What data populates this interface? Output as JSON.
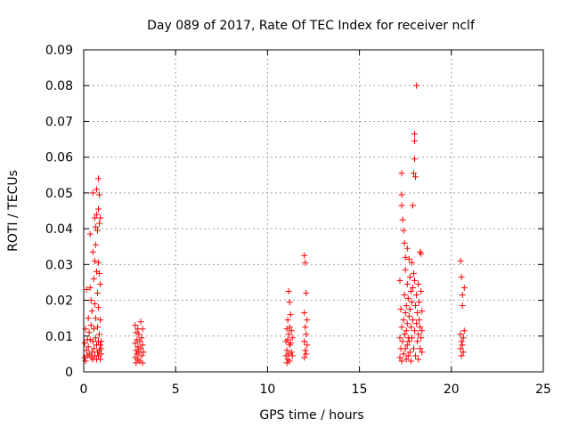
{
  "chart_data": {
    "type": "scatter",
    "title": "Day 089 of 2017, Rate Of TEC Index for receiver nclf",
    "xlabel": "GPS time / hours",
    "ylabel": "ROTI / TECUs",
    "xlim": [
      0,
      25
    ],
    "ylim": [
      0,
      0.09
    ],
    "xticks": [
      0,
      5,
      10,
      15,
      20,
      25
    ],
    "xtick_labels": [
      "0",
      "5",
      "10",
      "15",
      "20",
      "25"
    ],
    "yticks": [
      0,
      0.01,
      0.02,
      0.03,
      0.04,
      0.05,
      0.06,
      0.07,
      0.08,
      0.09
    ],
    "ytick_labels": [
      "0",
      "0.01",
      "0.02",
      "0.03",
      "0.04",
      "0.05",
      "0.06",
      "0.07",
      "0.08",
      "0.09"
    ],
    "grid": true,
    "marker": "+",
    "color": "#ff0000",
    "series": [
      {
        "name": "ROTI",
        "points": [
          [
            0.05,
            0.004
          ],
          [
            0.05,
            0.008
          ],
          [
            0.1,
            0.012
          ],
          [
            0.1,
            0.003
          ],
          [
            0.15,
            0.023
          ],
          [
            0.15,
            0.006
          ],
          [
            0.2,
            0.009
          ],
          [
            0.2,
            0.0045
          ],
          [
            0.25,
            0.015
          ],
          [
            0.25,
            0.007
          ],
          [
            0.3,
            0.005
          ],
          [
            0.3,
            0.011
          ],
          [
            0.35,
            0.0385
          ],
          [
            0.35,
            0.0235
          ],
          [
            0.35,
            0.009
          ],
          [
            0.4,
            0.013
          ],
          [
            0.4,
            0.004
          ],
          [
            0.4,
            0.02
          ],
          [
            0.45,
            0.017
          ],
          [
            0.45,
            0.0055
          ],
          [
            0.5,
            0.0335
          ],
          [
            0.5,
            0.0085
          ],
          [
            0.5,
            0.0035
          ],
          [
            0.5,
            0.05
          ],
          [
            0.55,
            0.026
          ],
          [
            0.55,
            0.012
          ],
          [
            0.55,
            0.0065
          ],
          [
            0.6,
            0.043
          ],
          [
            0.6,
            0.031
          ],
          [
            0.6,
            0.019
          ],
          [
            0.6,
            0.0045
          ],
          [
            0.65,
            0.0405
          ],
          [
            0.65,
            0.0355
          ],
          [
            0.65,
            0.0095
          ],
          [
            0.65,
            0.015
          ],
          [
            0.7,
            0.044
          ],
          [
            0.7,
            0.028
          ],
          [
            0.7,
            0.051
          ],
          [
            0.7,
            0.0075
          ],
          [
            0.7,
            0.0035
          ],
          [
            0.75,
            0.0395
          ],
          [
            0.75,
            0.022
          ],
          [
            0.75,
            0.0125
          ],
          [
            0.75,
            0.0055
          ],
          [
            0.8,
            0.054
          ],
          [
            0.8,
            0.0455
          ],
          [
            0.8,
            0.0305
          ],
          [
            0.8,
            0.018
          ],
          [
            0.8,
            0.0085
          ],
          [
            0.8,
            0.0045
          ],
          [
            0.85,
            0.0495
          ],
          [
            0.85,
            0.0415
          ],
          [
            0.85,
            0.0275
          ],
          [
            0.85,
            0.0105
          ],
          [
            0.85,
            0.006
          ],
          [
            0.9,
            0.043
          ],
          [
            0.9,
            0.0245
          ],
          [
            0.9,
            0.0145
          ],
          [
            0.9,
            0.0075
          ],
          [
            0.9,
            0.0035
          ],
          [
            0.95,
            0.0085
          ],
          [
            0.95,
            0.005
          ],
          [
            0.95,
            0.0065
          ],
          [
            2.8,
            0.013
          ],
          [
            2.8,
            0.008
          ],
          [
            2.8,
            0.004
          ],
          [
            2.85,
            0.011
          ],
          [
            2.85,
            0.006
          ],
          [
            2.85,
            0.0025
          ],
          [
            2.9,
            0.009
          ],
          [
            2.9,
            0.005
          ],
          [
            2.95,
            0.012
          ],
          [
            2.95,
            0.007
          ],
          [
            2.95,
            0.0035
          ],
          [
            3.0,
            0.0105
          ],
          [
            3.0,
            0.0055
          ],
          [
            3.05,
            0.0085
          ],
          [
            3.05,
            0.003
          ],
          [
            3.1,
            0.014
          ],
          [
            3.1,
            0.0065
          ],
          [
            3.15,
            0.0095
          ],
          [
            3.15,
            0.0045
          ],
          [
            3.2,
            0.012
          ],
          [
            3.2,
            0.0075
          ],
          [
            3.2,
            0.0025
          ],
          [
            3.25,
            0.0055
          ],
          [
            11.0,
            0.0085
          ],
          [
            11.0,
            0.0045
          ],
          [
            11.05,
            0.012
          ],
          [
            11.05,
            0.006
          ],
          [
            11.05,
            0.0025
          ],
          [
            11.1,
            0.0145
          ],
          [
            11.1,
            0.009
          ],
          [
            11.1,
            0.0035
          ],
          [
            11.15,
            0.0225
          ],
          [
            11.15,
            0.0105
          ],
          [
            11.15,
            0.005
          ],
          [
            11.2,
            0.0195
          ],
          [
            11.2,
            0.0125
          ],
          [
            11.2,
            0.0075
          ],
          [
            11.2,
            0.003
          ],
          [
            11.25,
            0.016
          ],
          [
            11.25,
            0.008
          ],
          [
            11.3,
            0.0115
          ],
          [
            11.3,
            0.0055
          ],
          [
            11.35,
            0.0095
          ],
          [
            11.35,
            0.0045
          ],
          [
            12.0,
            0.0325
          ],
          [
            12.0,
            0.0165
          ],
          [
            12.0,
            0.0085
          ],
          [
            12.0,
            0.004
          ],
          [
            12.05,
            0.0305
          ],
          [
            12.05,
            0.0125
          ],
          [
            12.05,
            0.006
          ],
          [
            12.1,
            0.022
          ],
          [
            12.1,
            0.0105
          ],
          [
            12.1,
            0.005
          ],
          [
            12.15,
            0.0145
          ],
          [
            12.15,
            0.0075
          ],
          [
            17.2,
            0.0255
          ],
          [
            17.2,
            0.0095
          ],
          [
            17.2,
            0.004
          ],
          [
            17.25,
            0.0175
          ],
          [
            17.25,
            0.0065
          ],
          [
            17.3,
            0.0555
          ],
          [
            17.3,
            0.0495
          ],
          [
            17.3,
            0.0465
          ],
          [
            17.3,
            0.0125
          ],
          [
            17.3,
            0.003
          ],
          [
            17.35,
            0.0425
          ],
          [
            17.35,
            0.0085
          ],
          [
            17.4,
            0.0395
          ],
          [
            17.4,
            0.0145
          ],
          [
            17.4,
            0.005
          ],
          [
            17.45,
            0.036
          ],
          [
            17.45,
            0.0215
          ],
          [
            17.45,
            0.0105
          ],
          [
            17.5,
            0.032
          ],
          [
            17.5,
            0.0285
          ],
          [
            17.5,
            0.0165
          ],
          [
            17.5,
            0.0065
          ],
          [
            17.55,
            0.0185
          ],
          [
            17.55,
            0.0115
          ],
          [
            17.55,
            0.0035
          ],
          [
            17.6,
            0.0345
          ],
          [
            17.6,
            0.0245
          ],
          [
            17.6,
            0.0135
          ],
          [
            17.6,
            0.0075
          ],
          [
            17.65,
            0.0205
          ],
          [
            17.65,
            0.0095
          ],
          [
            17.65,
            0.0045
          ],
          [
            17.7,
            0.0315
          ],
          [
            17.7,
            0.0155
          ],
          [
            17.7,
            0.0085
          ],
          [
            17.75,
            0.0265
          ],
          [
            17.75,
            0.0175
          ],
          [
            17.75,
            0.0055
          ],
          [
            17.8,
            0.0225
          ],
          [
            17.8,
            0.0125
          ],
          [
            17.8,
            0.003
          ],
          [
            17.85,
            0.0305
          ],
          [
            17.85,
            0.0195
          ],
          [
            17.85,
            0.0095
          ],
          [
            17.9,
            0.0465
          ],
          [
            17.9,
            0.0235
          ],
          [
            17.9,
            0.0145
          ],
          [
            17.95,
            0.0555
          ],
          [
            17.95,
            0.0275
          ],
          [
            17.95,
            0.0065
          ],
          [
            18.0,
            0.0665
          ],
          [
            18.0,
            0.0645
          ],
          [
            18.0,
            0.0595
          ],
          [
            18.0,
            0.0255
          ],
          [
            18.0,
            0.0115
          ],
          [
            18.05,
            0.0545
          ],
          [
            18.05,
            0.0185
          ],
          [
            18.05,
            0.0045
          ],
          [
            18.1,
            0.08
          ],
          [
            18.1,
            0.0215
          ],
          [
            18.1,
            0.0135
          ],
          [
            18.15,
            0.0165
          ],
          [
            18.15,
            0.0085
          ],
          [
            18.2,
            0.0245
          ],
          [
            18.2,
            0.0105
          ],
          [
            18.2,
            0.0035
          ],
          [
            18.25,
            0.0195
          ],
          [
            18.25,
            0.0145
          ],
          [
            18.3,
            0.0335
          ],
          [
            18.3,
            0.0125
          ],
          [
            18.3,
            0.0065
          ],
          [
            18.35,
            0.033
          ],
          [
            18.35,
            0.0225
          ],
          [
            18.35,
            0.0095
          ],
          [
            18.4,
            0.017
          ],
          [
            18.4,
            0.0055
          ],
          [
            18.4,
            0.0115
          ],
          [
            20.5,
            0.031
          ],
          [
            20.5,
            0.0105
          ],
          [
            20.5,
            0.0065
          ],
          [
            20.55,
            0.0265
          ],
          [
            20.55,
            0.0085
          ],
          [
            20.55,
            0.0045
          ],
          [
            20.6,
            0.0215
          ],
          [
            20.6,
            0.0185
          ],
          [
            20.6,
            0.0075
          ],
          [
            20.65,
            0.0095
          ],
          [
            20.65,
            0.0055
          ],
          [
            20.7,
            0.0235
          ],
          [
            20.7,
            0.0115
          ]
        ]
      }
    ]
  }
}
